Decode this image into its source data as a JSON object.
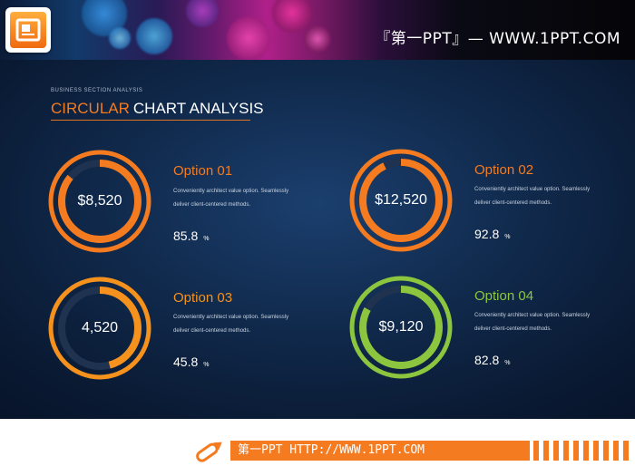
{
  "banner": {
    "text": "『第一PPT』— WWW.1PPT.COM",
    "logo_icon": "powerpoint-icon"
  },
  "header": {
    "subtitle": "BUSINESS SECTION ANALYSIS",
    "title_accent": "CIRCULAR",
    "title_rest": "CHART ANALYSIS"
  },
  "options": [
    {
      "title": "Option 01",
      "value": "$8,520",
      "desc": "Conveniently architect value option. Seamlessly deliver client-centered methods.",
      "percent": "85.8",
      "unit": "%",
      "progress": 0.858,
      "color": "#f47b20"
    },
    {
      "title": "Option 02",
      "value": "$12,520",
      "desc": "Conveniently architect value option. Seamlessly deliver client-centered methods.",
      "percent": "92.8",
      "unit": "%",
      "progress": 0.928,
      "color": "#f47b20"
    },
    {
      "title": "Option 03",
      "value": "4,520",
      "desc": "Conveniently architect value option. Seamlessly deliver client-centered methods.",
      "percent": "45.8",
      "unit": "%",
      "progress": 0.458,
      "color": "#f5921e"
    },
    {
      "title": "Option 04",
      "value": "$9,120",
      "desc": "Conveniently architect value option. Seamlessly deliver client-centered methods.",
      "percent": "82.8",
      "unit": "%",
      "progress": 0.828,
      "color": "#8cc63f"
    }
  ],
  "footer": {
    "text": "第一PPT HTTP://WWW.1PPT.COM",
    "icon": "pencil-icon"
  }
}
